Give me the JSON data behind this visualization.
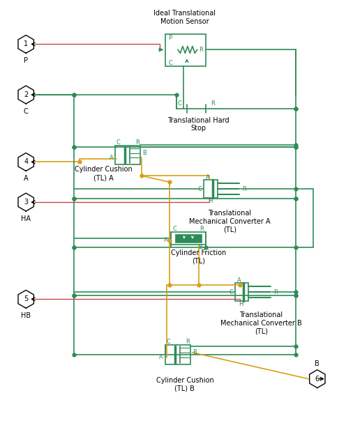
{
  "bg_color": "#ffffff",
  "G": "#2e8b57",
  "O": "#d4a017",
  "RD": "#cc4444",
  "font_size": 7.0,
  "small_font": 6.0,
  "labels": {
    "sensor": "Ideal Translational\nMotion Sensor",
    "hardstop": "Translational Hard\nStop",
    "cushion_a": "Cylinder Cushion\n(TL) A",
    "converter_a": "Translational\nMechanical Converter A\n(TL)",
    "friction": "Cylinder Friction\n(TL)",
    "converter_b": "Translational\nMechanical Converter B\n(TL)",
    "cushion_b": "Cylinder Cushion\n(TL) B"
  }
}
